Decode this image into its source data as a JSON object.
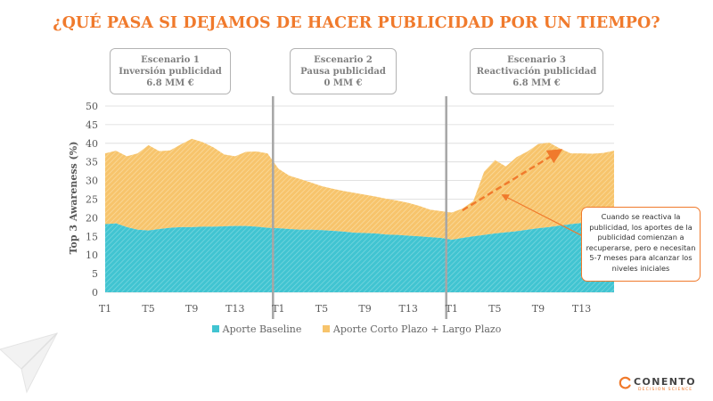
{
  "title": "¿QUÉ PASA SI DEJAMOS DE HACER PUBLICIDAD POR UN TIEMPO?",
  "scenarios": [
    {
      "name": "Escenario 1",
      "desc": "Inversión publicidad",
      "amount": "6.8 MM €"
    },
    {
      "name": "Escenario 2",
      "desc": "Pausa publicidad",
      "amount": "0 MM €"
    },
    {
      "name": "Escenario 3",
      "desc": "Reactivación publicidad",
      "amount": "6.8 MM €"
    }
  ],
  "callout": "Cuando se reactiva la publicidad, los aportes de la publicidad comienzan a recuperarse, pero e necesitan 5-7 meses para alcanzar los niveles iniciales",
  "logo": {
    "name": "CONENTO",
    "sub": "DECISION SCIENCE"
  },
  "colors": {
    "baseline": "#41C4D1",
    "short_long": "#F7C46C",
    "accent": "#F07A2C",
    "divider": "#A6A6A6"
  },
  "chart_data": {
    "type": "area",
    "stacked": true,
    "ylabel": "Top 3 Awareness (%)",
    "xlabel": "",
    "ylim": [
      0,
      50
    ],
    "yticks": [
      0,
      5,
      10,
      15,
      20,
      25,
      30,
      35,
      40,
      45,
      50
    ],
    "grid": true,
    "legend_position": "bottom",
    "x_tick_labels": [
      "T1",
      "T5",
      "T9",
      "T13",
      "T1",
      "T5",
      "T9",
      "T13",
      "T1",
      "T5",
      "T9",
      "T13"
    ],
    "series": [
      {
        "name": "Aporte Baseline",
        "color": "#41C4D1",
        "values": [
          18.3,
          18.5,
          17.5,
          16.8,
          16.6,
          17.0,
          17.3,
          17.5,
          17.5,
          17.6,
          17.6,
          17.7,
          17.8,
          17.8,
          17.6,
          17.3,
          17.2,
          17.0,
          16.8,
          16.8,
          16.7,
          16.5,
          16.3,
          16.0,
          15.9,
          15.8,
          15.5,
          15.4,
          15.2,
          15.0,
          14.8,
          14.6,
          14.1,
          14.6,
          15.0,
          15.4,
          15.8,
          16.1,
          16.4,
          16.8,
          17.2,
          17.5,
          17.9,
          18.3,
          18.6,
          19.0,
          19.4,
          19.5
        ]
      },
      {
        "name": "Aporte Corto Plazo + Largo Plazo",
        "color": "#F7C46C",
        "values": [
          19.0,
          19.5,
          19.0,
          20.5,
          22.9,
          20.9,
          20.8,
          22.2,
          23.7,
          22.7,
          21.3,
          19.3,
          18.7,
          19.9,
          20.2,
          20.0,
          16.0,
          14.3,
          13.6,
          12.7,
          11.8,
          11.3,
          10.9,
          10.7,
          10.3,
          9.9,
          9.6,
          9.2,
          8.8,
          8.2,
          7.4,
          7.2,
          7.3,
          7.9,
          9.5,
          17.0,
          19.7,
          17.7,
          19.9,
          21.0,
          22.6,
          22.7,
          20.7,
          19.0,
          18.7,
          18.2,
          18.0,
          18.5
        ]
      }
    ],
    "scenario_dividers_after_period": [
      16,
      32
    ],
    "trend_arrow": {
      "from": [
        33,
        22
      ],
      "to": [
        42,
        38
      ]
    }
  }
}
